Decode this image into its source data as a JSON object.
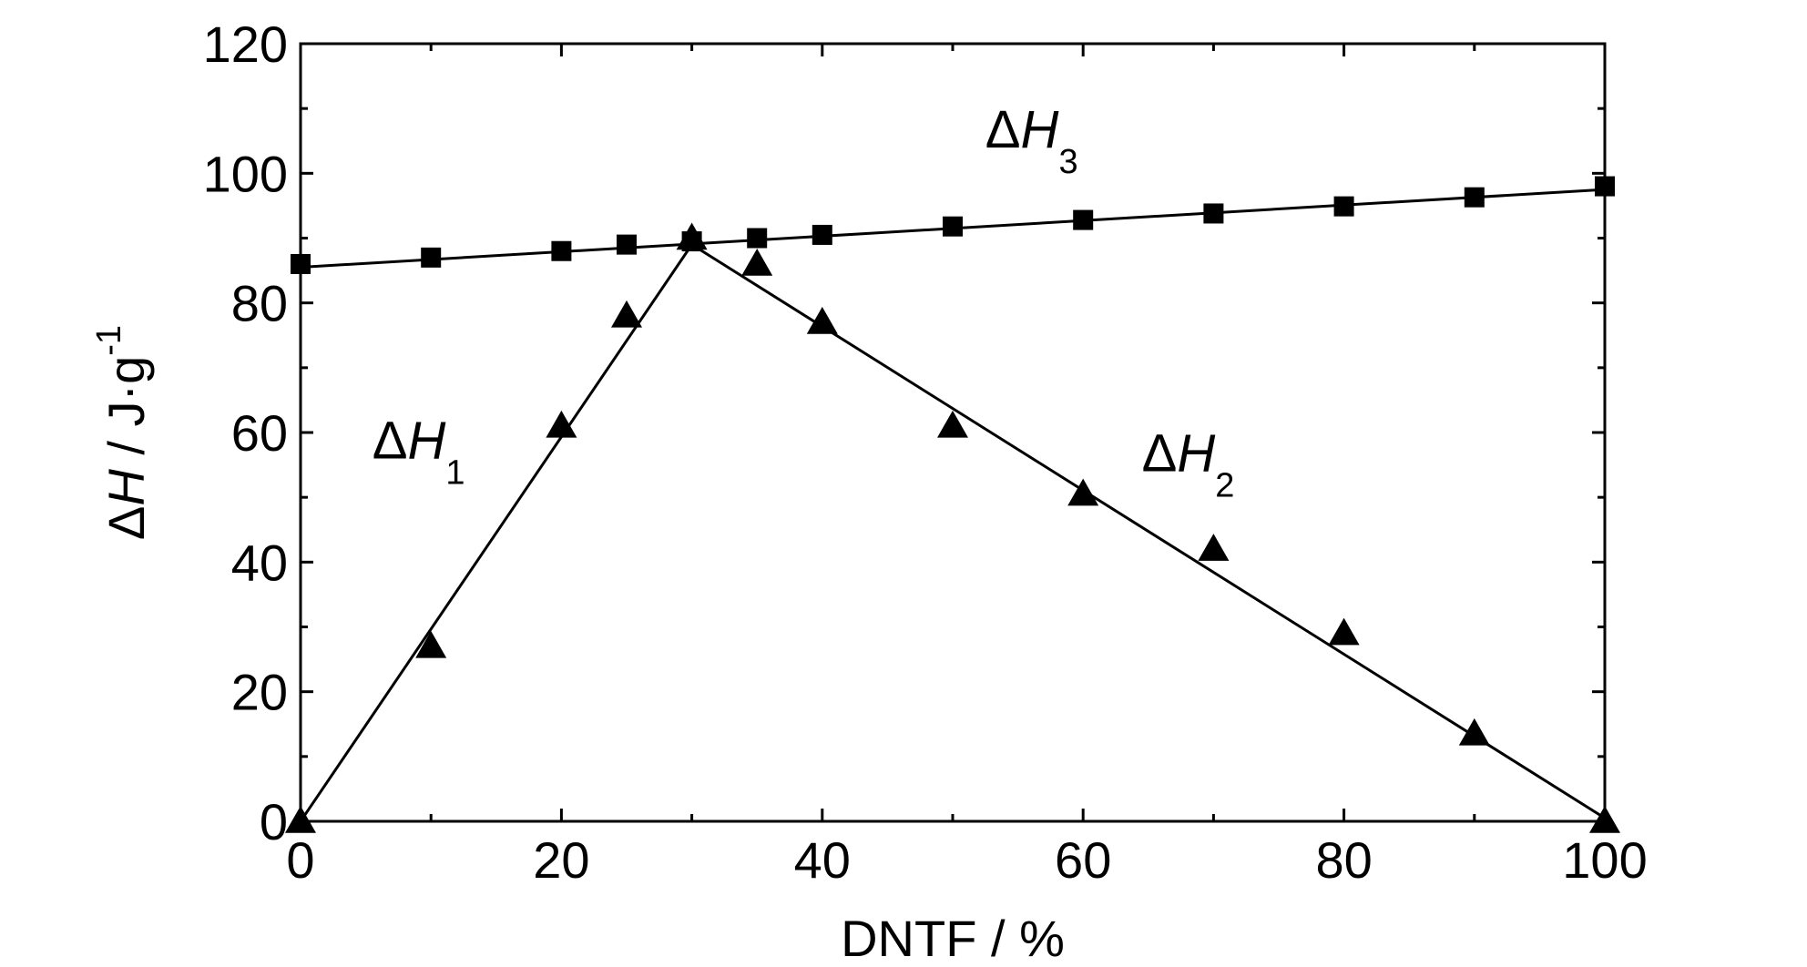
{
  "chart_data": {
    "type": "scatter",
    "xlabel": "DNTF / %",
    "ylabel": {
      "delta": "Δ",
      "var": "H",
      "unit": " / J·g",
      "exp": "-1"
    },
    "xlim": [
      0,
      100
    ],
    "ylim": [
      0,
      120
    ],
    "xticks": [
      0,
      20,
      40,
      60,
      80,
      100
    ],
    "yticks": [
      0,
      20,
      40,
      60,
      80,
      100,
      120
    ],
    "grid": false,
    "legend": "none",
    "series": [
      {
        "marker": "square",
        "color": "#000000",
        "x": [
          0,
          10,
          20,
          25,
          30,
          35,
          40,
          50,
          60,
          70,
          80,
          90,
          100
        ],
        "y": [
          86,
          87,
          88,
          89,
          89.5,
          90,
          90.5,
          91.8,
          92.8,
          93.8,
          94.9,
          96.3,
          98
        ]
      },
      {
        "marker": "triangle",
        "color": "#000000",
        "x": [
          0,
          10,
          20,
          25,
          30,
          35,
          40,
          50,
          60,
          70,
          80,
          90,
          100
        ],
        "y": [
          0,
          27,
          61,
          78,
          90,
          86,
          77,
          61,
          50.5,
          42,
          29,
          13.5,
          0
        ]
      }
    ],
    "fit_lines": [
      {
        "x": [
          0,
          100
        ],
        "y": [
          85.5,
          97.5
        ]
      },
      {
        "x": [
          0,
          30
        ],
        "y": [
          0,
          89
        ]
      },
      {
        "x": [
          30,
          100
        ],
        "y": [
          89,
          0.5
        ]
      }
    ],
    "annotations": [
      {
        "delta": "Δ",
        "var": "H",
        "sub": "1",
        "x": 5.5,
        "y": 56
      },
      {
        "delta": "Δ",
        "var": "H",
        "sub": "2",
        "x": 64.5,
        "y": 54
      },
      {
        "delta": "Δ",
        "var": "H",
        "sub": "3",
        "x": 52.5,
        "y": 104
      }
    ]
  }
}
